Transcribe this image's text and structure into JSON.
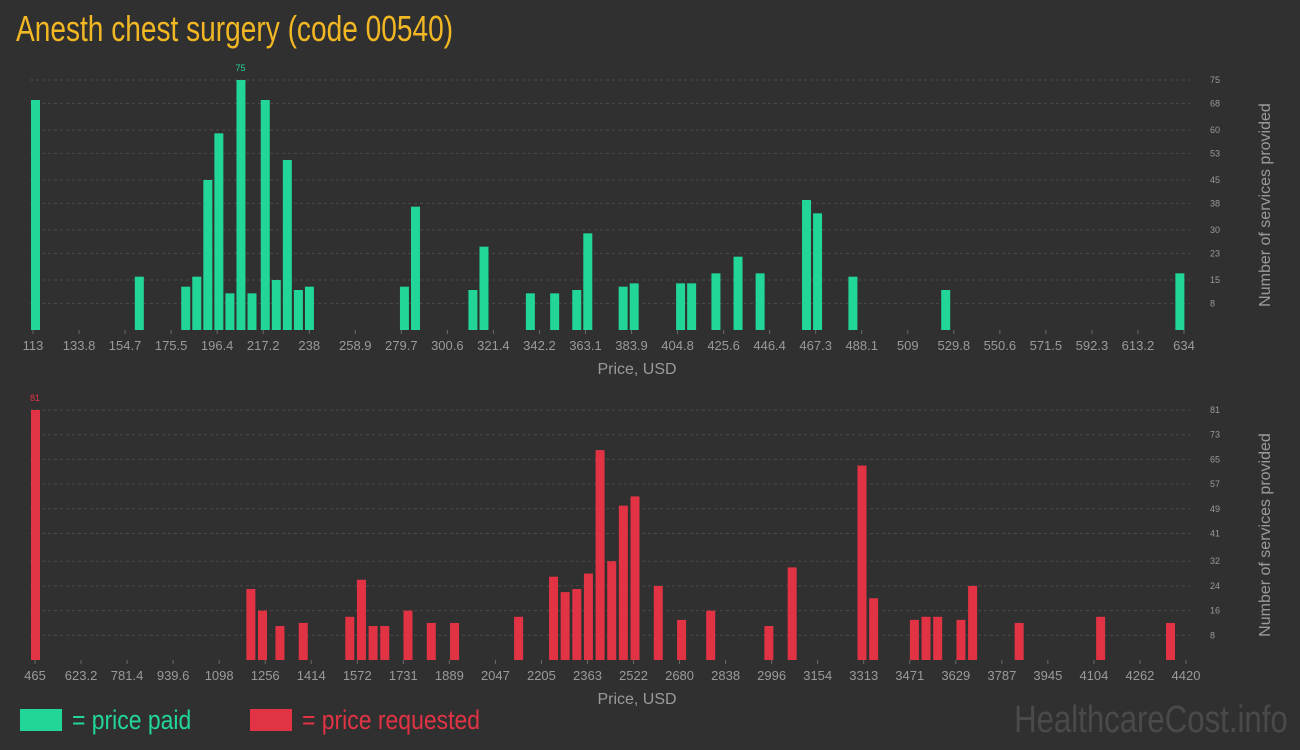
{
  "page": {
    "title": "Anesth chest surgery (code 00540)"
  },
  "colors": {
    "paid": "#21d696",
    "requested": "#e23344",
    "title": "#f2b824",
    "grid": "#4a4a4a",
    "text": "#9a9a9a"
  },
  "legend": {
    "paid_label": "= price paid",
    "requested_label": "= price requested"
  },
  "watermark": "HealthcareCost.info",
  "chart_data": [
    {
      "type": "bar",
      "name": "price paid",
      "xlabel": "Price, USD",
      "ylabel": "Number of services provided",
      "xlim": [
        113,
        634
      ],
      "ylim": [
        0,
        75
      ],
      "peak_label": "75",
      "x_ticks": [
        "113",
        "133.8",
        "154.7",
        "175.5",
        "196.4",
        "217.2",
        "238",
        "258.9",
        "279.7",
        "300.6",
        "321.4",
        "342.2",
        "363.1",
        "383.9",
        "404.8",
        "425.6",
        "446.4",
        "467.3",
        "488.1",
        "509",
        "529.8",
        "550.6",
        "571.5",
        "592.3",
        "613.2",
        "634"
      ],
      "y_ticks": [
        "8",
        "15",
        "23",
        "30",
        "38",
        "45",
        "53",
        "60",
        "68",
        "75"
      ],
      "bars": [
        {
          "x": 113,
          "y": 69
        },
        {
          "x": 160,
          "y": 16
        },
        {
          "x": 181,
          "y": 13
        },
        {
          "x": 186,
          "y": 16
        },
        {
          "x": 191,
          "y": 45
        },
        {
          "x": 196,
          "y": 59
        },
        {
          "x": 201,
          "y": 11
        },
        {
          "x": 206,
          "y": 75
        },
        {
          "x": 211,
          "y": 11
        },
        {
          "x": 217,
          "y": 69
        },
        {
          "x": 222,
          "y": 15
        },
        {
          "x": 227,
          "y": 51
        },
        {
          "x": 232,
          "y": 12
        },
        {
          "x": 237,
          "y": 13
        },
        {
          "x": 280,
          "y": 13
        },
        {
          "x": 285,
          "y": 37
        },
        {
          "x": 311,
          "y": 12
        },
        {
          "x": 316,
          "y": 25
        },
        {
          "x": 337,
          "y": 11
        },
        {
          "x": 348,
          "y": 11
        },
        {
          "x": 358,
          "y": 12
        },
        {
          "x": 363,
          "y": 29
        },
        {
          "x": 379,
          "y": 13
        },
        {
          "x": 384,
          "y": 14
        },
        {
          "x": 405,
          "y": 14
        },
        {
          "x": 410,
          "y": 14
        },
        {
          "x": 421,
          "y": 17
        },
        {
          "x": 431,
          "y": 22
        },
        {
          "x": 441,
          "y": 17
        },
        {
          "x": 462,
          "y": 39
        },
        {
          "x": 467,
          "y": 35
        },
        {
          "x": 483,
          "y": 16
        },
        {
          "x": 525,
          "y": 12
        },
        {
          "x": 631,
          "y": 17
        }
      ]
    },
    {
      "type": "bar",
      "name": "price requested",
      "xlabel": "Price, USD",
      "ylabel": "Number of services provided",
      "xlim": [
        465,
        4420
      ],
      "ylim": [
        0,
        81
      ],
      "peak_label": "81",
      "x_ticks": [
        "465",
        "623.2",
        "781.4",
        "939.6",
        "1098",
        "1256",
        "1414",
        "1572",
        "1731",
        "1889",
        "2047",
        "2205",
        "2363",
        "2522",
        "2680",
        "2838",
        "2996",
        "3154",
        "3313",
        "3471",
        "3629",
        "3787",
        "3945",
        "4104",
        "4262",
        "4420"
      ],
      "y_ticks": [
        "8",
        "16",
        "24",
        "32",
        "41",
        "49",
        "57",
        "65",
        "73",
        "81"
      ],
      "bars": [
        {
          "x": 465,
          "y": 81
        },
        {
          "x": 1205,
          "y": 23
        },
        {
          "x": 1245,
          "y": 16
        },
        {
          "x": 1305,
          "y": 11
        },
        {
          "x": 1385,
          "y": 12
        },
        {
          "x": 1545,
          "y": 14
        },
        {
          "x": 1585,
          "y": 26
        },
        {
          "x": 1625,
          "y": 11
        },
        {
          "x": 1665,
          "y": 11
        },
        {
          "x": 1745,
          "y": 16
        },
        {
          "x": 1825,
          "y": 12
        },
        {
          "x": 1905,
          "y": 12
        },
        {
          "x": 2125,
          "y": 14
        },
        {
          "x": 2245,
          "y": 27
        },
        {
          "x": 2285,
          "y": 22
        },
        {
          "x": 2325,
          "y": 23
        },
        {
          "x": 2365,
          "y": 28
        },
        {
          "x": 2405,
          "y": 68
        },
        {
          "x": 2445,
          "y": 32
        },
        {
          "x": 2485,
          "y": 50
        },
        {
          "x": 2525,
          "y": 53
        },
        {
          "x": 2605,
          "y": 24
        },
        {
          "x": 2685,
          "y": 13
        },
        {
          "x": 2785,
          "y": 16
        },
        {
          "x": 2985,
          "y": 11
        },
        {
          "x": 3065,
          "y": 30
        },
        {
          "x": 3305,
          "y": 63
        },
        {
          "x": 3345,
          "y": 20
        },
        {
          "x": 3485,
          "y": 13
        },
        {
          "x": 3525,
          "y": 14
        },
        {
          "x": 3565,
          "y": 14
        },
        {
          "x": 3645,
          "y": 13
        },
        {
          "x": 3685,
          "y": 24
        },
        {
          "x": 3845,
          "y": 12
        },
        {
          "x": 4125,
          "y": 14
        },
        {
          "x": 4365,
          "y": 12
        }
      ]
    }
  ]
}
